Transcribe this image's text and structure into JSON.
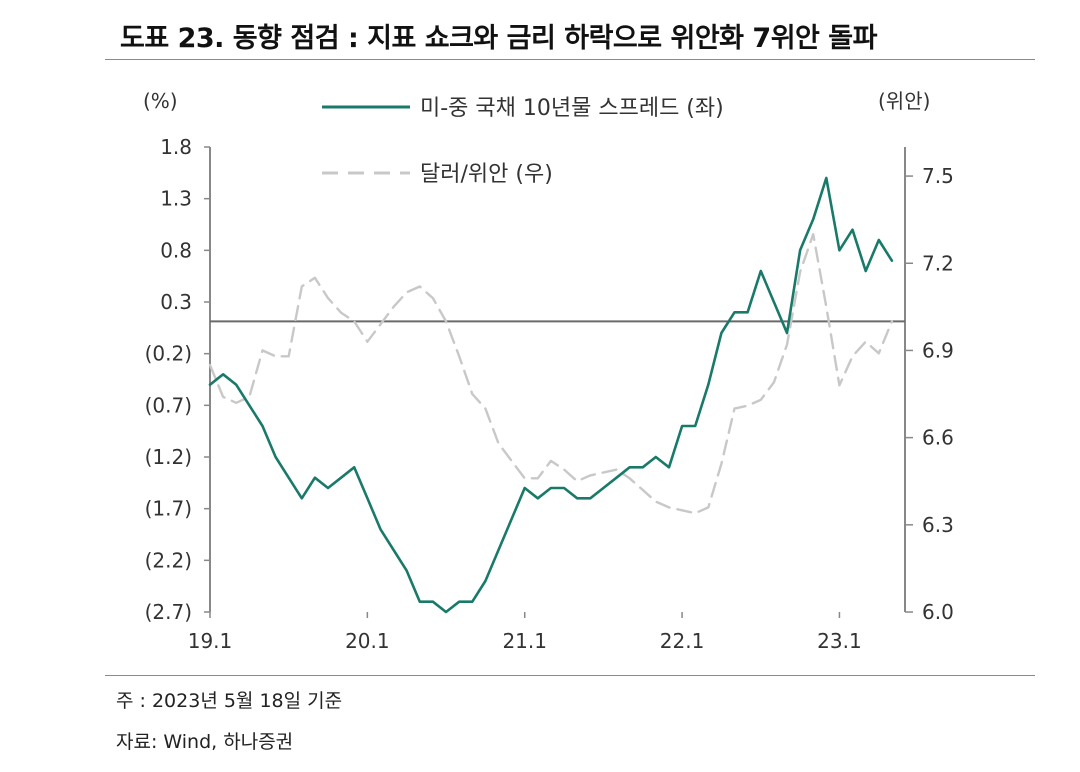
{
  "title": "도표 23. 동향 점검 : 지표 쇼크와 금리 하락으로 위안화 7위안 돌파",
  "notes": {
    "basis": "주 : 2023년 5월 18일 기준",
    "source": "자료: Wind, 하나증권"
  },
  "colors": {
    "spread": "#1a7a6a",
    "cny": "#c8c8c8",
    "axis": "#888888"
  },
  "chart_data": {
    "type": "line",
    "x_ticks": [
      "19.1",
      "20.1",
      "21.1",
      "22.1",
      "23.1"
    ],
    "x_range": [
      "2019-01",
      "2023-06"
    ],
    "left_axis": {
      "unit": "(%)",
      "ticks": [
        "1.8",
        "1.3",
        "0.8",
        "0.3",
        "(0.2)",
        "(0.7)",
        "(1.2)",
        "(1.7)",
        "(2.2)",
        "(2.7)"
      ],
      "range": [
        -2.7,
        1.8
      ]
    },
    "right_axis": {
      "unit": "(위안)",
      "ticks": [
        "7.5",
        "7.2",
        "6.9",
        "6.6",
        "6.3",
        "6.0"
      ],
      "range": [
        6.0,
        7.6
      ]
    },
    "reference_line": {
      "axis": "right",
      "value": 7.0
    },
    "legend_position": "top-center",
    "series": [
      {
        "name": "미-중 국채 10년물 스프레드 (좌)",
        "axis": "left",
        "style": "solid",
        "x": [
          "2019-01",
          "2019-02",
          "2019-03",
          "2019-04",
          "2019-05",
          "2019-06",
          "2019-07",
          "2019-08",
          "2019-09",
          "2019-10",
          "2019-11",
          "2019-12",
          "2020-01",
          "2020-02",
          "2020-03",
          "2020-04",
          "2020-05",
          "2020-06",
          "2020-07",
          "2020-08",
          "2020-09",
          "2020-10",
          "2020-11",
          "2020-12",
          "2021-01",
          "2021-02",
          "2021-03",
          "2021-04",
          "2021-05",
          "2021-06",
          "2021-07",
          "2021-08",
          "2021-09",
          "2021-10",
          "2021-11",
          "2021-12",
          "2022-01",
          "2022-02",
          "2022-03",
          "2022-04",
          "2022-05",
          "2022-06",
          "2022-07",
          "2022-08",
          "2022-09",
          "2022-10",
          "2022-11",
          "2022-12",
          "2023-01",
          "2023-02",
          "2023-03",
          "2023-04",
          "2023-05"
        ],
        "values": [
          -0.5,
          -0.4,
          -0.5,
          -0.7,
          -0.9,
          -1.2,
          -1.4,
          -1.6,
          -1.4,
          -1.5,
          -1.4,
          -1.3,
          -1.6,
          -1.9,
          -2.1,
          -2.3,
          -2.6,
          -2.6,
          -2.7,
          -2.6,
          -2.6,
          -2.4,
          -2.1,
          -1.8,
          -1.5,
          -1.6,
          -1.5,
          -1.5,
          -1.6,
          -1.6,
          -1.5,
          -1.4,
          -1.3,
          -1.3,
          -1.2,
          -1.3,
          -0.9,
          -0.9,
          -0.5,
          0.0,
          0.2,
          0.2,
          0.6,
          0.3,
          0.0,
          0.8,
          1.1,
          1.5,
          0.8,
          1.0,
          0.6,
          0.9,
          0.7
        ]
      },
      {
        "name": "달러/위안 (우)",
        "axis": "right",
        "style": "dashed",
        "x": [
          "2019-01",
          "2019-02",
          "2019-03",
          "2019-04",
          "2019-05",
          "2019-06",
          "2019-07",
          "2019-08",
          "2019-09",
          "2019-10",
          "2019-11",
          "2019-12",
          "2020-01",
          "2020-02",
          "2020-03",
          "2020-04",
          "2020-05",
          "2020-06",
          "2020-07",
          "2020-08",
          "2020-09",
          "2020-10",
          "2020-11",
          "2020-12",
          "2021-01",
          "2021-02",
          "2021-03",
          "2021-04",
          "2021-05",
          "2021-06",
          "2021-07",
          "2021-08",
          "2021-09",
          "2021-10",
          "2021-11",
          "2021-12",
          "2022-01",
          "2022-02",
          "2022-03",
          "2022-04",
          "2022-05",
          "2022-06",
          "2022-07",
          "2022-08",
          "2022-09",
          "2022-10",
          "2022-11",
          "2022-12",
          "2023-01",
          "2023-02",
          "2023-03",
          "2023-04",
          "2023-05"
        ],
        "values": [
          6.85,
          6.74,
          6.72,
          6.74,
          6.9,
          6.88,
          6.88,
          7.12,
          7.15,
          7.08,
          7.03,
          7.0,
          6.93,
          6.99,
          7.05,
          7.1,
          7.12,
          7.08,
          7.0,
          6.88,
          6.75,
          6.7,
          6.58,
          6.52,
          6.46,
          6.46,
          6.52,
          6.49,
          6.45,
          6.47,
          6.48,
          6.49,
          6.46,
          6.42,
          6.38,
          6.36,
          6.35,
          6.34,
          6.36,
          6.51,
          6.7,
          6.71,
          6.73,
          6.79,
          6.92,
          7.17,
          7.3,
          7.05,
          6.78,
          6.88,
          6.93,
          6.89,
          7.0
        ]
      }
    ]
  }
}
